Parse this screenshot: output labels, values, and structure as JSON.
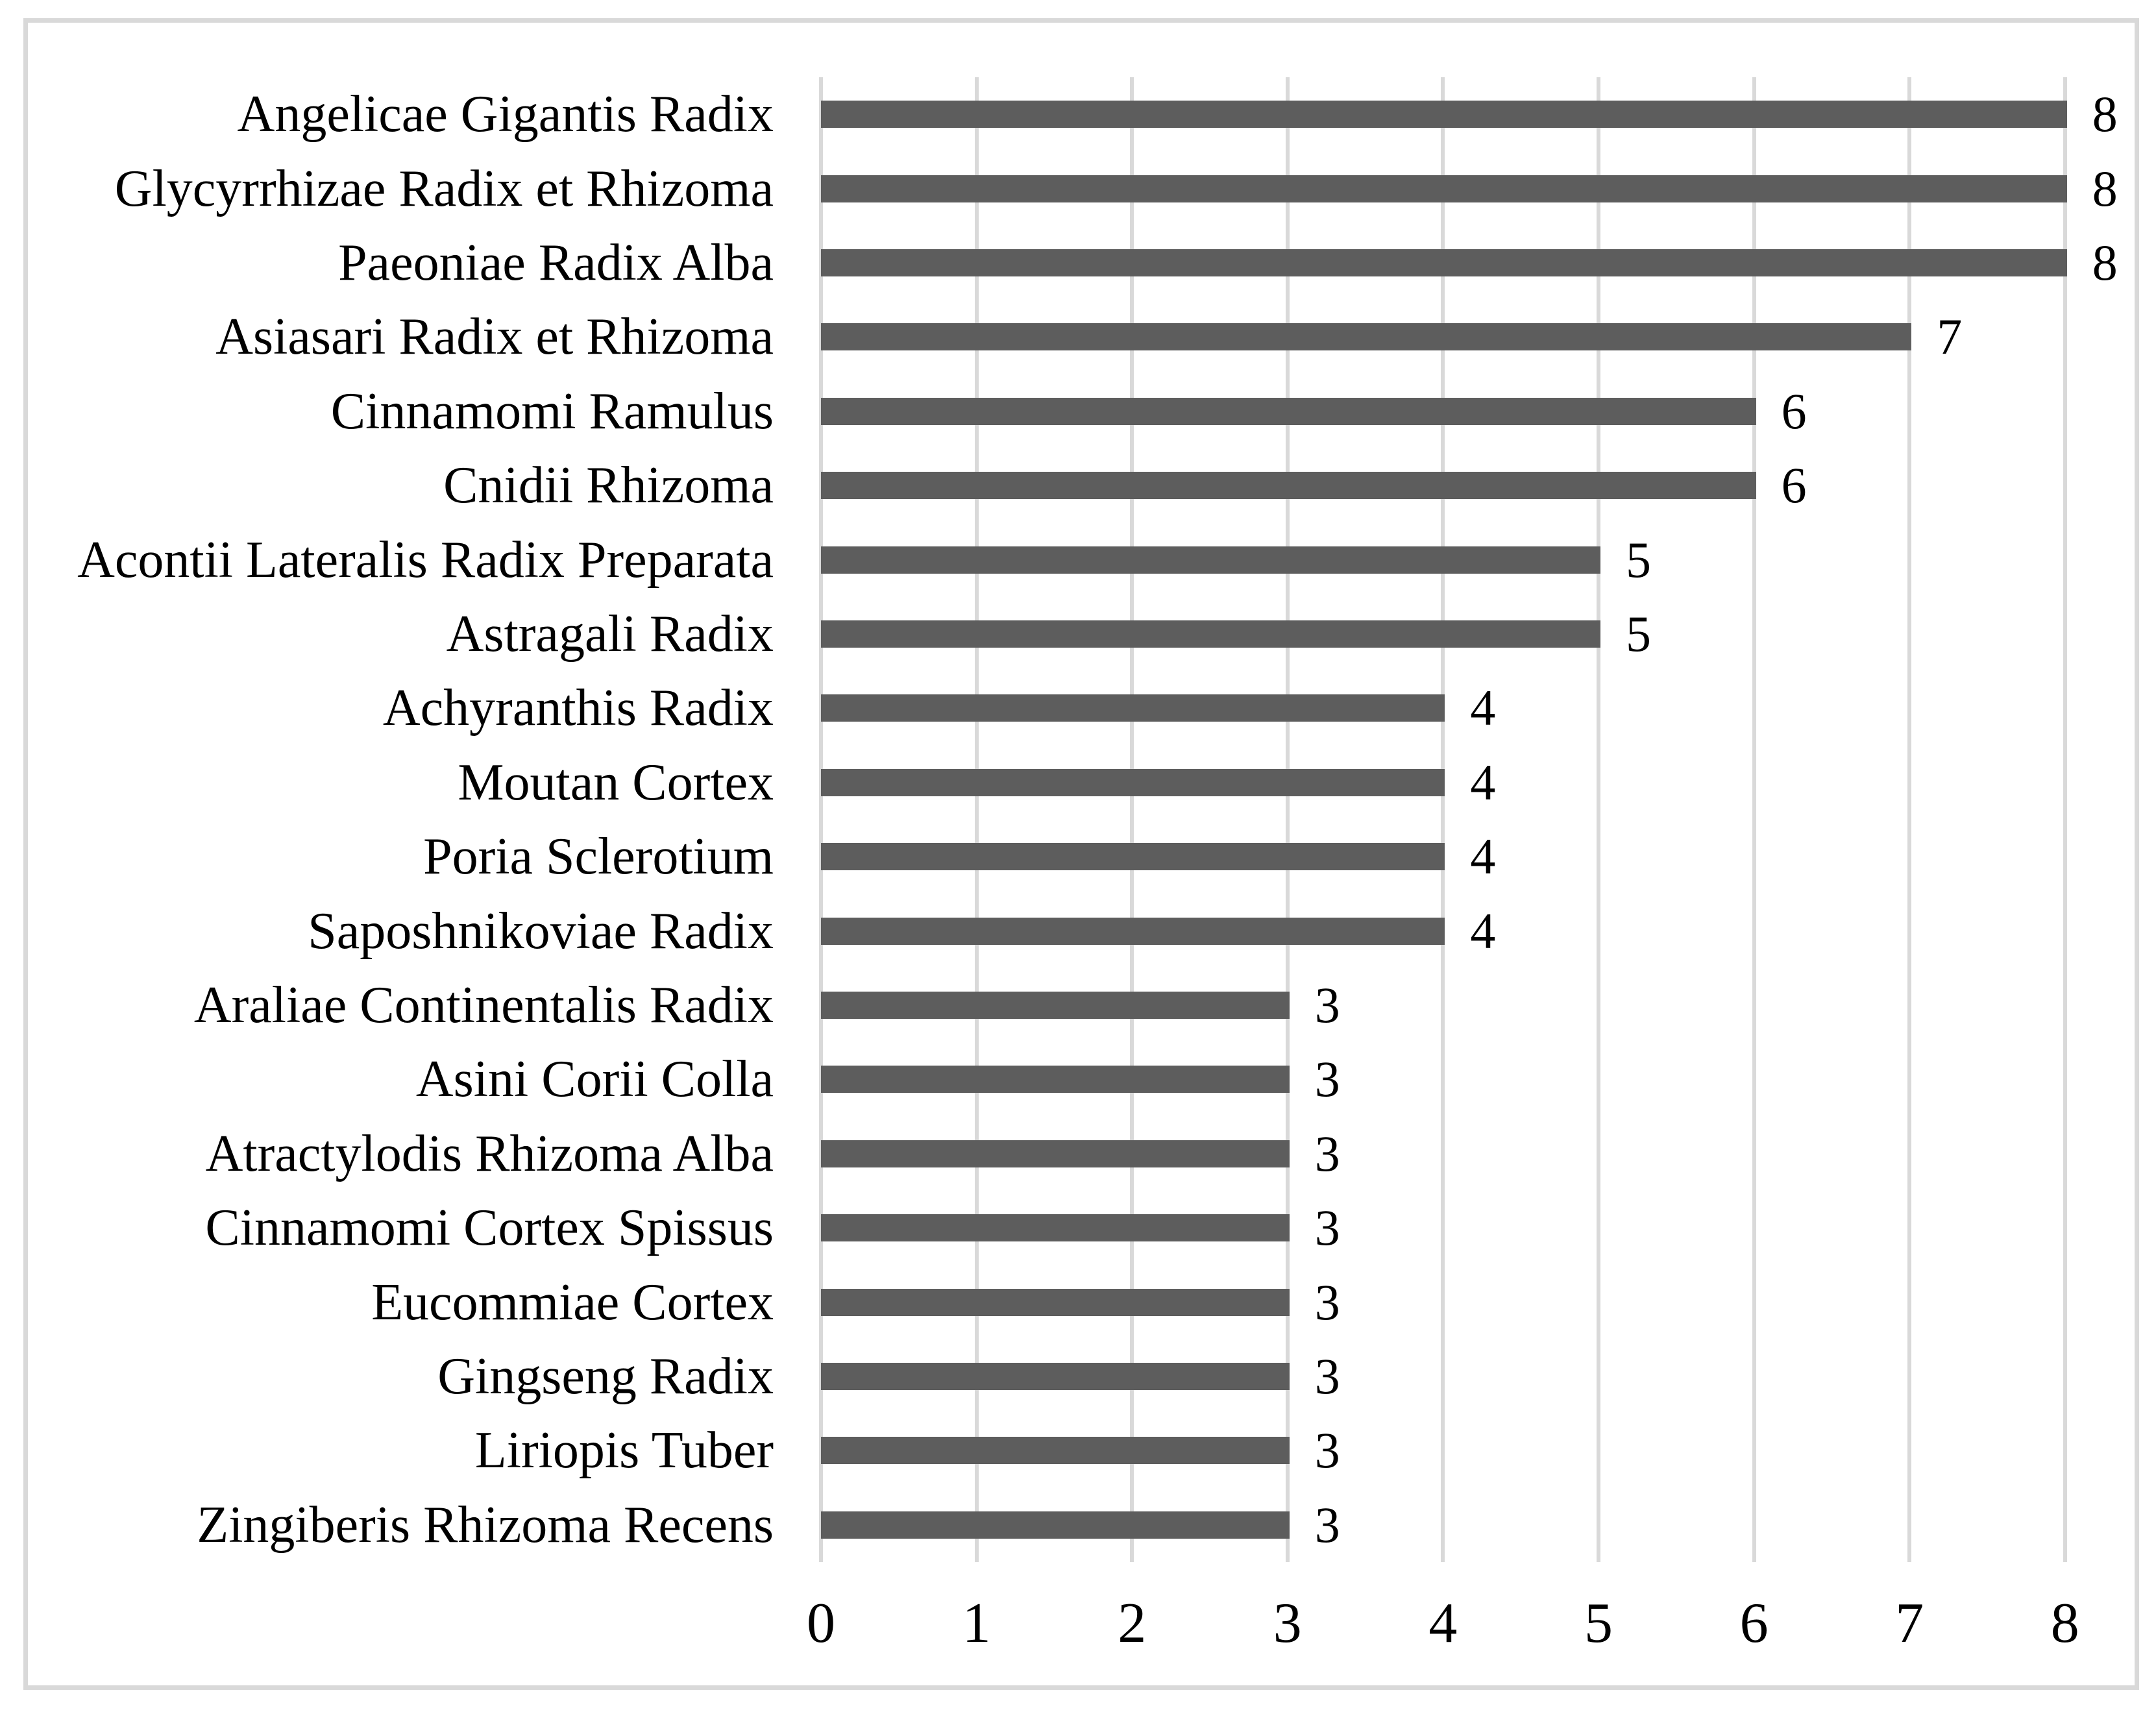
{
  "chart_data": {
    "type": "bar",
    "orientation": "horizontal",
    "title": "",
    "xlabel": "",
    "ylabel": "",
    "categories": [
      "Angelicae Gigantis Radix",
      "Glycyrrhizae Radix et Rhizoma",
      "Paeoniae Radix Alba",
      "Asiasari Radix et Rhizoma",
      "Cinnamomi Ramulus",
      "Cnidii Rhizoma",
      "Acontii Lateralis Radix Preparata",
      "Astragali Radix",
      "Achyranthis Radix",
      "Moutan Cortex",
      "Poria Sclerotium",
      "Saposhnikoviae Radix",
      "Araliae Continentalis Radix",
      "Asini Corii Colla",
      "Atractylodis Rhizoma Alba",
      "Cinnamomi Cortex Spissus",
      "Eucommiae Cortex",
      "Gingseng Radix",
      "Liriopis Tuber",
      "Zingiberis Rhizoma Recens"
    ],
    "values": [
      8,
      8,
      8,
      7,
      6,
      6,
      5,
      5,
      4,
      4,
      4,
      4,
      3,
      3,
      3,
      3,
      3,
      3,
      3,
      3
    ],
    "xticks": [
      0,
      1,
      2,
      3,
      4,
      5,
      6,
      7,
      8
    ],
    "xlim": [
      0,
      8
    ],
    "grid": "vertical-major",
    "legend": "none",
    "value_labels": "outside-end",
    "bar_color": "#5d5d5d",
    "gridline_color": "#d9d9d9",
    "frame_border_color": "#d9d9d9",
    "text_color": "#000000",
    "background_color": "#ffffff"
  }
}
